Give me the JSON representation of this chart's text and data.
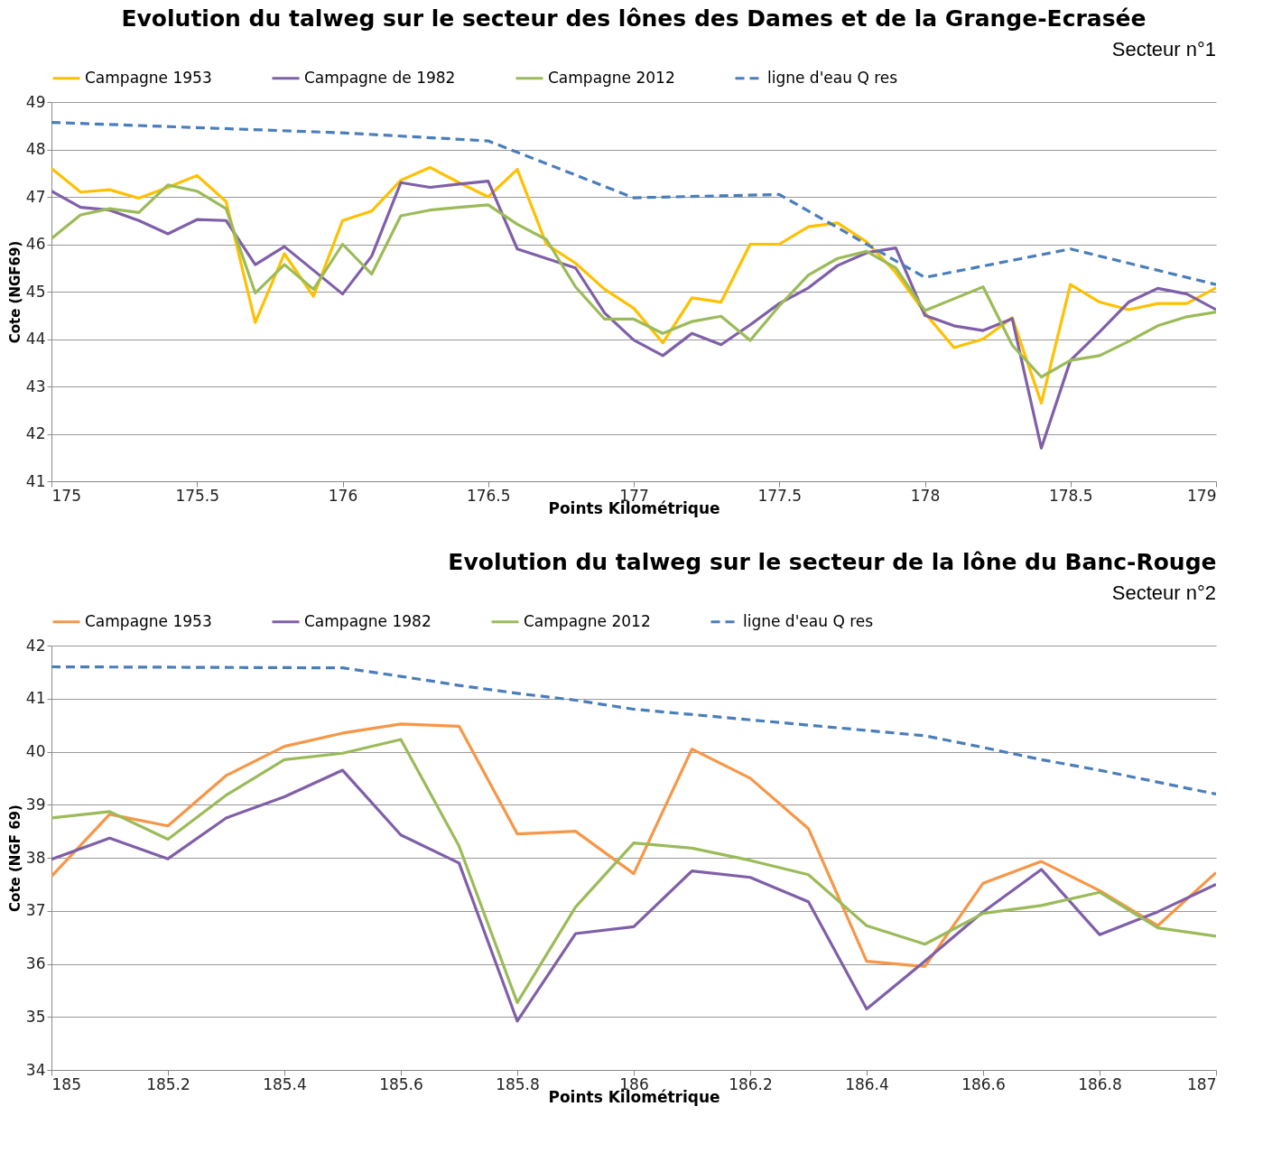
{
  "chart_data": [
    {
      "type": "line",
      "title": "Evolution du talweg sur le secteur des lônes des Dames et de la Grange-Ecrasée",
      "xlabel": "Points Kilométrique",
      "ylabel": "Cote (NGF69)",
      "annotations": [
        "Secteur n°1"
      ],
      "x": [
        175,
        175.1,
        175.2,
        175.3,
        175.4,
        175.5,
        175.6,
        175.7,
        175.8,
        175.9,
        176,
        176.1,
        176.2,
        176.3,
        176.4,
        176.5,
        176.6,
        176.7,
        176.8,
        176.9,
        177,
        177.1,
        177.2,
        177.3,
        177.4,
        177.5,
        177.6,
        177.7,
        177.8,
        177.9,
        178,
        178.1,
        178.2,
        178.3,
        178.4,
        178.5,
        178.6,
        178.7,
        178.8,
        178.9,
        179
      ],
      "series": [
        {
          "name": "Campagne 1953",
          "color": "#ffc000",
          "line_style": "solid",
          "values": [
            47.6,
            47.1,
            47.15,
            46.97,
            47.2,
            47.45,
            46.9,
            44.35,
            45.8,
            44.9,
            46.5,
            46.7,
            47.35,
            47.62,
            47.3,
            47.0,
            47.58,
            46.0,
            45.6,
            45.05,
            44.65,
            43.92,
            44.87,
            44.78,
            46.0,
            46.0,
            46.37,
            46.45,
            46.05,
            45.4,
            44.55,
            43.82,
            44.0,
            44.45,
            42.65,
            45.15,
            44.78,
            44.62,
            44.75,
            44.75,
            45.08
          ]
        },
        {
          "name": "Campagne de 1982",
          "color": "#7f5fa8",
          "line_style": "solid",
          "values": [
            47.12,
            46.78,
            46.72,
            46.5,
            46.22,
            46.52,
            46.5,
            45.57,
            45.95,
            45.45,
            44.95,
            45.75,
            47.3,
            47.2,
            47.27,
            47.33,
            45.9,
            45.7,
            45.5,
            44.55,
            43.98,
            43.65,
            44.12,
            43.88,
            44.3,
            44.75,
            45.08,
            45.55,
            45.82,
            45.92,
            44.5,
            44.28,
            44.18,
            44.43,
            41.7,
            43.55,
            44.15,
            44.78,
            45.07,
            44.95,
            44.62
          ]
        },
        {
          "name": "Campagne 2012",
          "color": "#9bbb59",
          "line_style": "solid",
          "values": [
            46.12,
            46.62,
            46.75,
            46.67,
            47.25,
            47.12,
            46.75,
            44.97,
            45.57,
            45.05,
            46.0,
            45.37,
            46.6,
            46.72,
            46.78,
            46.83,
            46.42,
            46.1,
            45.1,
            44.42,
            44.42,
            44.12,
            44.37,
            44.48,
            43.97,
            44.7,
            45.35,
            45.7,
            45.85,
            45.5,
            44.6,
            44.85,
            45.1,
            43.87,
            43.2,
            43.55,
            43.65,
            43.95,
            44.28,
            44.47,
            44.57
          ]
        },
        {
          "name": "ligne d'eau Q res",
          "color": "#4a7ebb",
          "line_style": "dashed",
          "x": [
            175,
            176,
            176.5,
            177,
            177.5,
            178,
            178.5,
            179
          ],
          "values": [
            48.57,
            48.35,
            48.18,
            46.98,
            47.05,
            45.3,
            45.9,
            45.15
          ]
        }
      ],
      "xlim": [
        175,
        179
      ],
      "xticks": [
        175,
        175.5,
        176,
        176.5,
        177,
        177.5,
        178,
        178.5,
        179
      ],
      "ylim": [
        41,
        49
      ],
      "yticks": [
        41,
        42,
        43,
        44,
        45,
        46,
        47,
        48,
        49
      ],
      "grid": "y",
      "legend": "top",
      "marker": "none"
    },
    {
      "type": "line",
      "title": "Evolution du talweg sur le secteur de la lône du Banc-Rouge",
      "xlabel": "Points Kilométrique",
      "ylabel": "Cote (NGF 69)",
      "annotations": [
        "Secteur n°2"
      ],
      "x": [
        185,
        185.1,
        185.2,
        185.3,
        185.4,
        185.5,
        185.6,
        185.7,
        185.8,
        185.9,
        186,
        186.1,
        186.2,
        186.3,
        186.4,
        186.5,
        186.6,
        186.7,
        186.8,
        186.9,
        187
      ],
      "series": [
        {
          "name": "Campagne 1953",
          "color": "#f79646",
          "line_style": "solid",
          "values": [
            37.65,
            38.82,
            38.6,
            39.55,
            40.1,
            40.35,
            40.52,
            40.48,
            38.45,
            38.5,
            37.7,
            40.05,
            39.5,
            38.55,
            36.05,
            35.95,
            37.52,
            37.93,
            37.38,
            36.72,
            37.72
          ]
        },
        {
          "name": "Campagne 1982",
          "color": "#7f5fa8",
          "line_style": "solid",
          "values": [
            37.97,
            38.37,
            37.98,
            38.75,
            39.15,
            39.65,
            38.43,
            37.9,
            34.92,
            36.57,
            36.7,
            37.75,
            37.63,
            37.17,
            35.15,
            36.05,
            36.98,
            37.78,
            36.55,
            36.98,
            37.5
          ]
        },
        {
          "name": "Campagne 2012",
          "color": "#9bbb59",
          "line_style": "solid",
          "values": [
            38.75,
            38.87,
            38.35,
            39.18,
            39.85,
            39.97,
            40.23,
            38.22,
            35.27,
            37.07,
            38.28,
            38.18,
            37.95,
            37.68,
            36.72,
            36.37,
            36.95,
            37.1,
            37.35,
            36.68,
            36.52
          ]
        },
        {
          "name": "ligne d'eau Q res",
          "color": "#4a7ebb",
          "line_style": "dashed",
          "x": [
            185,
            185.5,
            185.6,
            185.7,
            185.8,
            185.9,
            186,
            186.2,
            186.3,
            186.4,
            186.5,
            186.6,
            186.7,
            186.8,
            187
          ],
          "values": [
            41.6,
            41.58,
            41.42,
            41.25,
            41.1,
            40.97,
            40.8,
            40.6,
            40.5,
            40.4,
            40.3,
            40.08,
            39.85,
            39.65,
            39.2
          ]
        }
      ],
      "xlim": [
        185,
        187
      ],
      "xticks": [
        185,
        185.2,
        185.4,
        185.6,
        185.8,
        186,
        186.2,
        186.4,
        186.6,
        186.8,
        187
      ],
      "ylim": [
        34,
        42
      ],
      "yticks": [
        34,
        35,
        36,
        37,
        38,
        39,
        40,
        41,
        42
      ],
      "grid": "y",
      "legend": "top",
      "marker": "none"
    }
  ]
}
